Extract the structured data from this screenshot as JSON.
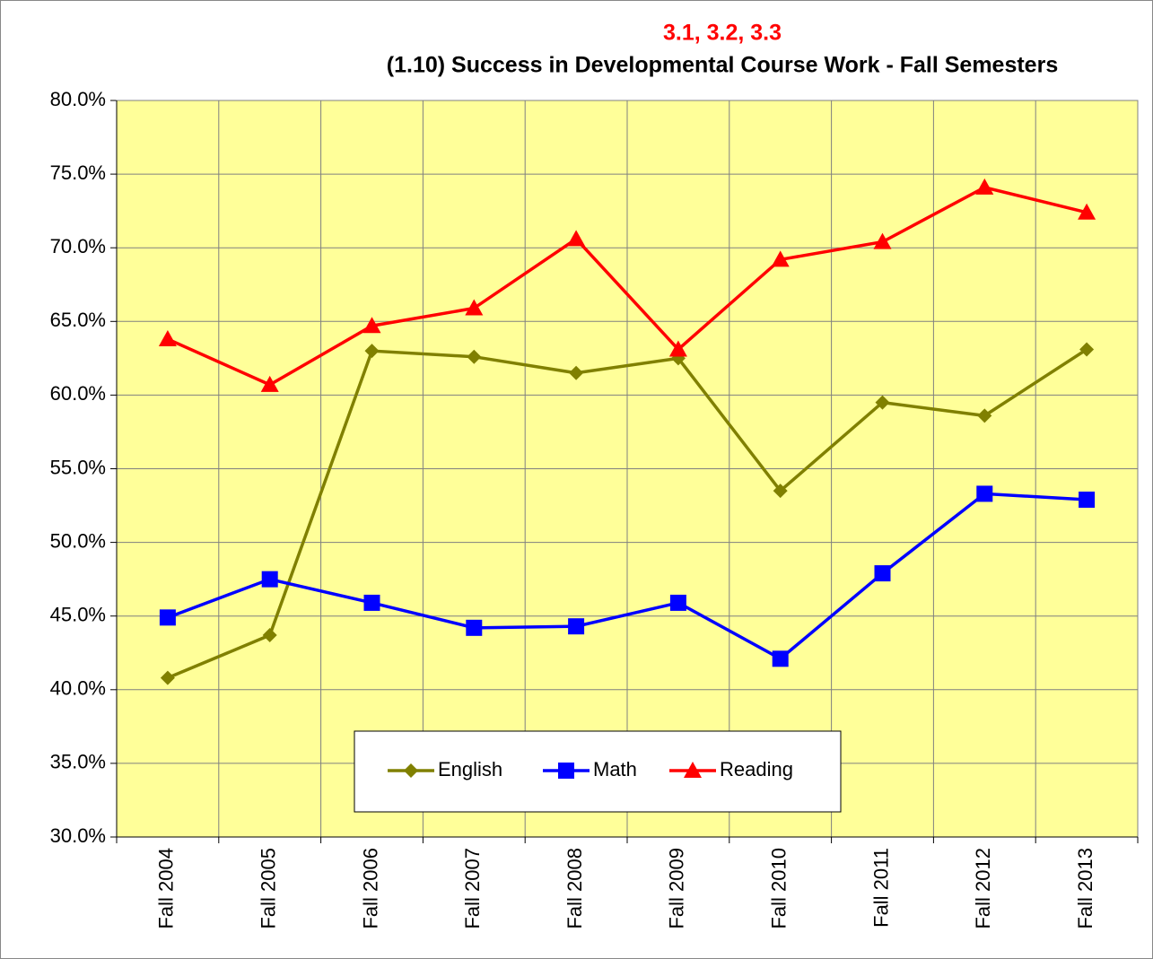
{
  "chart_data": {
    "type": "line",
    "subtitle": "3.1, 3.2, 3.3",
    "title": "(1.10) Success in Developmental Course Work - Fall Semesters",
    "categories": [
      "Fall 2004",
      "Fall 2005",
      "Fall 2006",
      "Fall 2007",
      "Fall 2008",
      "Fall 2009",
      "Fall 2010",
      "Fall 2011",
      "Fall 2012",
      "Fall 2013"
    ],
    "series": [
      {
        "name": "English",
        "color": "#808000",
        "marker": "diamond",
        "values": [
          40.8,
          43.7,
          63.0,
          62.6,
          61.5,
          62.5,
          53.5,
          59.5,
          58.6,
          63.1
        ]
      },
      {
        "name": "Math",
        "color": "#0000ff",
        "marker": "square",
        "values": [
          44.9,
          47.5,
          45.9,
          44.2,
          44.3,
          45.9,
          42.1,
          47.9,
          53.3,
          52.9
        ]
      },
      {
        "name": "Reading",
        "color": "#ff0000",
        "marker": "triangle",
        "values": [
          63.8,
          60.7,
          64.7,
          65.9,
          70.6,
          63.1,
          69.2,
          70.4,
          74.1,
          72.4
        ]
      }
    ],
    "ylim": [
      30,
      80
    ],
    "yticks": [
      {
        "value": 30,
        "label": "30.0%"
      },
      {
        "value": 35,
        "label": "35.0%"
      },
      {
        "value": 40,
        "label": "40.0%"
      },
      {
        "value": 45,
        "label": "45.0%"
      },
      {
        "value": 50,
        "label": "50.0%"
      },
      {
        "value": 55,
        "label": "55.0%"
      },
      {
        "value": 60,
        "label": "60.0%"
      },
      {
        "value": 65,
        "label": "65.0%"
      },
      {
        "value": 70,
        "label": "70.0%"
      },
      {
        "value": 75,
        "label": "75.0%"
      },
      {
        "value": 80,
        "label": "80.0%"
      }
    ],
    "grid": true,
    "plot_background": "#ffff99"
  }
}
